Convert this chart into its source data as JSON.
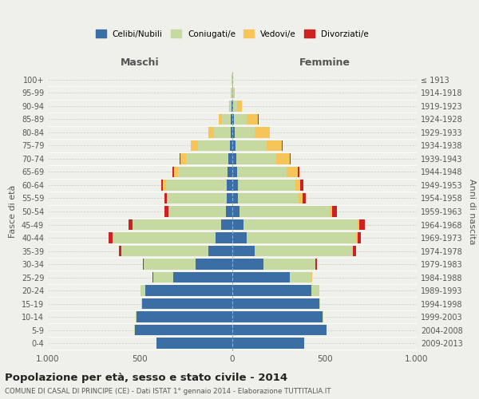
{
  "age_groups": [
    "0-4",
    "5-9",
    "10-14",
    "15-19",
    "20-24",
    "25-29",
    "30-34",
    "35-39",
    "40-44",
    "45-49",
    "50-54",
    "55-59",
    "60-64",
    "65-69",
    "70-74",
    "75-79",
    "80-84",
    "85-89",
    "90-94",
    "95-99",
    "100+"
  ],
  "birth_years": [
    "2009-2013",
    "2004-2008",
    "1999-2003",
    "1994-1998",
    "1989-1993",
    "1984-1988",
    "1979-1983",
    "1974-1978",
    "1969-1973",
    "1964-1968",
    "1959-1963",
    "1954-1958",
    "1949-1953",
    "1944-1948",
    "1939-1943",
    "1934-1938",
    "1929-1933",
    "1924-1928",
    "1919-1923",
    "1914-1918",
    "≤ 1913"
  ],
  "male": {
    "celibe": [
      410,
      530,
      520,
      490,
      470,
      320,
      200,
      130,
      90,
      60,
      35,
      30,
      30,
      25,
      20,
      15,
      10,
      8,
      4,
      2,
      2
    ],
    "coniugato": [
      0,
      1,
      2,
      5,
      30,
      110,
      280,
      470,
      560,
      480,
      310,
      320,
      330,
      270,
      230,
      170,
      90,
      50,
      10,
      3,
      2
    ],
    "vedovo": [
      0,
      0,
      0,
      0,
      0,
      0,
      0,
      1,
      1,
      2,
      3,
      5,
      15,
      20,
      30,
      40,
      30,
      15,
      5,
      2,
      1
    ],
    "divorziato": [
      0,
      0,
      0,
      0,
      0,
      2,
      5,
      12,
      18,
      20,
      18,
      15,
      12,
      10,
      5,
      2,
      0,
      0,
      0,
      0,
      0
    ]
  },
  "female": {
    "nubile": [
      390,
      510,
      490,
      470,
      430,
      310,
      170,
      120,
      80,
      60,
      40,
      30,
      30,
      25,
      20,
      18,
      12,
      10,
      5,
      2,
      2
    ],
    "coniugata": [
      0,
      1,
      2,
      8,
      40,
      120,
      280,
      530,
      590,
      620,
      490,
      330,
      310,
      270,
      220,
      170,
      110,
      70,
      20,
      5,
      2
    ],
    "vedova": [
      0,
      0,
      0,
      0,
      0,
      1,
      2,
      5,
      8,
      10,
      10,
      20,
      30,
      60,
      70,
      80,
      80,
      60,
      25,
      5,
      2
    ],
    "divorziata": [
      0,
      0,
      0,
      0,
      0,
      2,
      5,
      15,
      20,
      30,
      25,
      20,
      15,
      8,
      5,
      3,
      2,
      2,
      0,
      0,
      0
    ]
  },
  "colors": {
    "celibe": "#3a6ea5",
    "coniugato": "#c5d9a0",
    "vedovo": "#f5c55a",
    "divorziato": "#cc2222"
  },
  "xlim": 1000,
  "title": "Popolazione per età, sesso e stato civile - 2014",
  "subtitle": "COMUNE DI CASAL DI PRINCIPE (CE) - Dati ISTAT 1° gennaio 2014 - Elaborazione TUTTITALIA.IT",
  "xlabel_left": "Maschi",
  "xlabel_right": "Femmine",
  "ylabel_left": "Fasce di età",
  "ylabel_right": "Anni di nascita",
  "legend_labels": [
    "Celibi/Nubili",
    "Coniugati/e",
    "Vedovi/e",
    "Divorziati/e"
  ],
  "bg_color": "#f0f0eb",
  "grid_color": "#cccccc"
}
